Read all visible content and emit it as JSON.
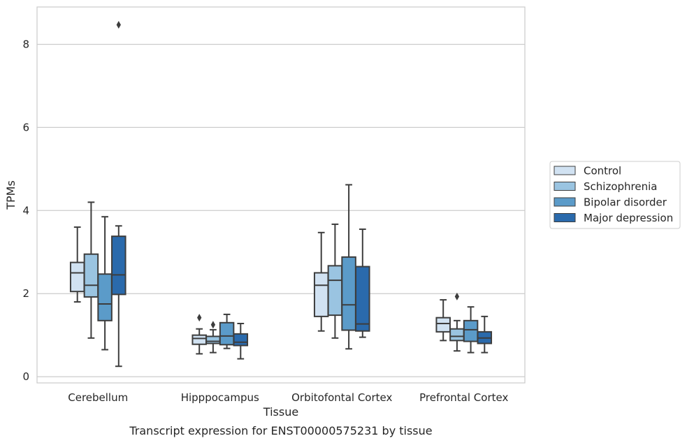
{
  "chart_data": {
    "type": "box",
    "xlabel": "Tissue",
    "ylabel": "TPMs",
    "caption": "Transcript expression for ENST00000575231 by tissue",
    "categories": [
      "Cerebellum",
      "Hipppocampus",
      "Orbitofontal Cortex",
      "Prefrontal Cortex"
    ],
    "ylim": [
      -0.15,
      8.9
    ],
    "yticks": [
      0,
      2,
      4,
      6,
      8
    ],
    "grid": "horizontal",
    "legend_position": "right",
    "series": [
      {
        "name": "Control",
        "color": "#d1e2f2",
        "boxes": [
          {
            "whislo": 1.8,
            "q1": 2.05,
            "med": 2.5,
            "q3": 2.75,
            "whishi": 3.6,
            "fliers": []
          },
          {
            "whislo": 0.55,
            "q1": 0.78,
            "med": 0.92,
            "q3": 1.0,
            "whishi": 1.15,
            "fliers": [
              1.42
            ]
          },
          {
            "whislo": 1.1,
            "q1": 1.45,
            "med": 2.2,
            "q3": 2.5,
            "whishi": 3.47,
            "fliers": []
          },
          {
            "whislo": 0.87,
            "q1": 1.08,
            "med": 1.28,
            "q3": 1.42,
            "whishi": 1.85,
            "fliers": []
          }
        ]
      },
      {
        "name": "Schizophrenia",
        "color": "#9ac4e1",
        "boxes": [
          {
            "whislo": 0.93,
            "q1": 1.92,
            "med": 2.2,
            "q3": 2.95,
            "whishi": 4.2,
            "fliers": []
          },
          {
            "whislo": 0.58,
            "q1": 0.8,
            "med": 0.85,
            "q3": 0.97,
            "whishi": 1.13,
            "fliers": [
              1.25
            ]
          },
          {
            "whislo": 0.93,
            "q1": 1.48,
            "med": 2.32,
            "q3": 2.67,
            "whishi": 3.67,
            "fliers": []
          },
          {
            "whislo": 0.62,
            "q1": 0.87,
            "med": 0.97,
            "q3": 1.15,
            "whishi": 1.35,
            "fliers": [
              1.93
            ]
          }
        ]
      },
      {
        "name": "Bipolar disorder",
        "color": "#5b9bc9",
        "boxes": [
          {
            "whislo": 0.65,
            "q1": 1.35,
            "med": 1.75,
            "q3": 2.47,
            "whishi": 3.85,
            "fliers": []
          },
          {
            "whislo": 0.68,
            "q1": 0.77,
            "med": 0.98,
            "q3": 1.3,
            "whishi": 1.5,
            "fliers": []
          },
          {
            "whislo": 0.67,
            "q1": 1.12,
            "med": 1.73,
            "q3": 2.88,
            "whishi": 4.62,
            "fliers": []
          },
          {
            "whislo": 0.58,
            "q1": 0.85,
            "med": 1.13,
            "q3": 1.35,
            "whishi": 1.68,
            "fliers": []
          }
        ]
      },
      {
        "name": "Major depression",
        "color": "#2a6aac",
        "boxes": [
          {
            "whislo": 0.25,
            "q1": 1.98,
            "med": 2.45,
            "q3": 3.38,
            "whishi": 3.63,
            "fliers": [
              8.47
            ]
          },
          {
            "whislo": 0.43,
            "q1": 0.75,
            "med": 0.83,
            "q3": 1.03,
            "whishi": 1.28,
            "fliers": []
          },
          {
            "whislo": 0.95,
            "q1": 1.1,
            "med": 1.27,
            "q3": 2.65,
            "whishi": 3.55,
            "fliers": []
          },
          {
            "whislo": 0.58,
            "q1": 0.8,
            "med": 0.93,
            "q3": 1.08,
            "whishi": 1.45,
            "fliers": []
          }
        ]
      }
    ]
  }
}
